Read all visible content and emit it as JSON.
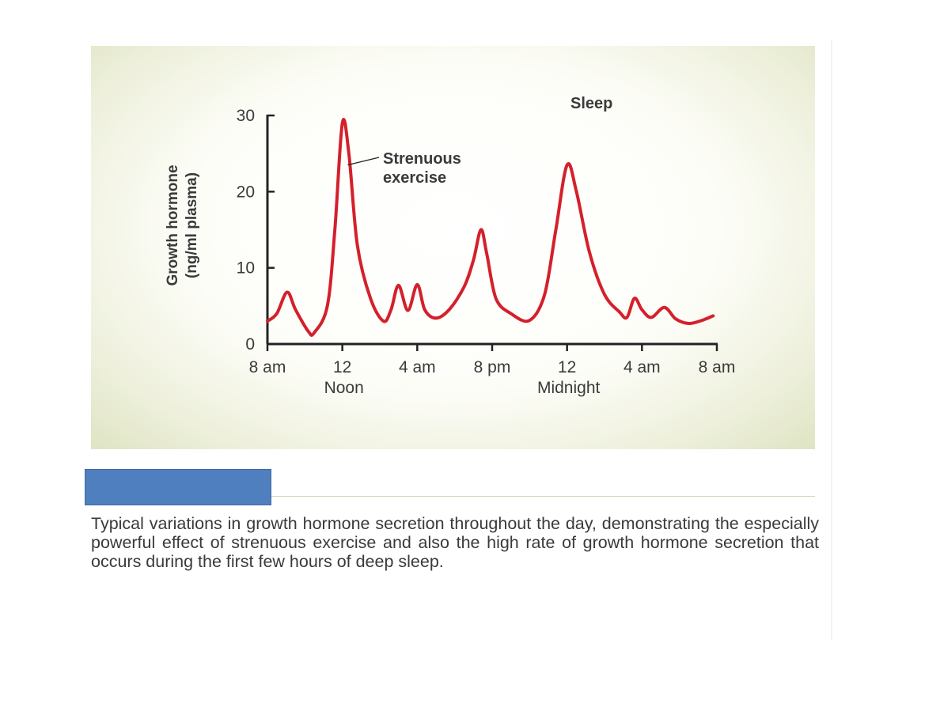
{
  "chart_data": {
    "type": "line",
    "ylabel_line1": "Growth hormone",
    "ylabel_line2": "(ng/ml plasma)",
    "ylim": [
      0,
      30
    ],
    "yticks": [
      0,
      10,
      20,
      30
    ],
    "xlim": [
      0,
      24
    ],
    "xticks": [
      {
        "x": 0,
        "label": "8 am",
        "sublabel": ""
      },
      {
        "x": 4,
        "label": "12",
        "sublabel": "Noon"
      },
      {
        "x": 8,
        "label": "4 am",
        "sublabel": ""
      },
      {
        "x": 12,
        "label": "8 pm",
        "sublabel": ""
      },
      {
        "x": 16,
        "label": "12",
        "sublabel": "Midnight"
      },
      {
        "x": 20,
        "label": "4 am",
        "sublabel": ""
      },
      {
        "x": 24,
        "label": "8 am",
        "sublabel": ""
      }
    ],
    "series": [
      {
        "color": "#d4202c",
        "points": [
          [
            0,
            3
          ],
          [
            0.5,
            4
          ],
          [
            1.05,
            6.8
          ],
          [
            1.5,
            4.5
          ],
          [
            2.2,
            1.6
          ],
          [
            2.5,
            1.5
          ],
          [
            3.2,
            5
          ],
          [
            3.6,
            15
          ],
          [
            4,
            29
          ],
          [
            4.35,
            25
          ],
          [
            4.8,
            13
          ],
          [
            5.5,
            6
          ],
          [
            6.2,
            3
          ],
          [
            6.6,
            4.5
          ],
          [
            7.0,
            7.7
          ],
          [
            7.5,
            4.4
          ],
          [
            8.0,
            7.8
          ],
          [
            8.4,
            4.5
          ],
          [
            9.0,
            3.4
          ],
          [
            9.7,
            4.5
          ],
          [
            10.5,
            7.5
          ],
          [
            11.0,
            11
          ],
          [
            11.4,
            15
          ],
          [
            11.7,
            12
          ],
          [
            12.2,
            6
          ],
          [
            13.0,
            4
          ],
          [
            14.0,
            3.1
          ],
          [
            14.8,
            6.5
          ],
          [
            15.4,
            15
          ],
          [
            16.0,
            23.5
          ],
          [
            16.5,
            20
          ],
          [
            17.2,
            12
          ],
          [
            18.0,
            6.5
          ],
          [
            18.8,
            4.2
          ],
          [
            19.2,
            3.5
          ],
          [
            19.6,
            6
          ],
          [
            20.0,
            4.5
          ],
          [
            20.5,
            3.5
          ],
          [
            21.2,
            4.8
          ],
          [
            21.8,
            3.3
          ],
          [
            22.5,
            2.7
          ],
          [
            23.2,
            3.1
          ],
          [
            23.8,
            3.7
          ]
        ]
      }
    ],
    "annotations": [
      {
        "text_line1": "Strenuous",
        "text_line2": "exercise",
        "x": 4.2,
        "y": 23.5
      },
      {
        "text": "Sleep"
      }
    ]
  },
  "caption": {
    "text": "Typical variations in growth hormone secretion throughout the day, demonstrating the especially powerful effect of strenuous exercise and also the high rate of growth hormone secretion that occurs during the first few hours of deep sleep."
  }
}
